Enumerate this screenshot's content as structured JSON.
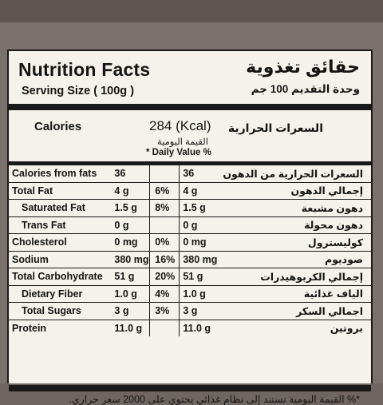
{
  "label": {
    "title_en": "Nutrition Facts",
    "title_ar": "حقائق تغذوية",
    "serving_en": "Serving Size ( 100g )",
    "serving_ar": "وحدة التقديم 100 جم",
    "calories_label_en": "Calories",
    "calories_label_ar": "السعرات الحرارية",
    "calories_value": "284 (Kcal)",
    "daily_value_ar": "القيمة اليومية",
    "daily_value_en": "* Daily Value %",
    "rows": [
      {
        "name_en": "Calories from fats",
        "amount": "36",
        "dv": "",
        "amount_ar": "36",
        "name_ar": "السعرات الحرارية من الدهون"
      },
      {
        "name_en": "Total Fat",
        "amount": "4 g",
        "dv": "6%",
        "amount_ar": "4 g",
        "name_ar": "إجمالي الدهون"
      },
      {
        "name_en": "Saturated Fat",
        "amount": "1.5 g",
        "dv": "8%",
        "amount_ar": "1.5 g",
        "name_ar": "دهون مشبعة"
      },
      {
        "name_en": "Trans Fat",
        "amount": "0 g",
        "dv": "",
        "amount_ar": "0 g",
        "name_ar": "دهون محولة"
      },
      {
        "name_en": "Cholesterol",
        "amount": "0 mg",
        "dv": "0%",
        "amount_ar": "0 mg",
        "name_ar": "كوليسترول"
      },
      {
        "name_en": "Sodium",
        "amount": "380 mg",
        "dv": "16%",
        "amount_ar": "380 mg",
        "name_ar": "صوديوم"
      },
      {
        "name_en": "Total Carbohydrate",
        "amount": "51 g",
        "dv": "20%",
        "amount_ar": "51 g",
        "name_ar": "إجمالي الكربوهيدرات"
      },
      {
        "name_en": "Dietary Fiber",
        "amount": "1.0 g",
        "dv": "4%",
        "amount_ar": "1.0 g",
        "name_ar": "الياف غذائية"
      },
      {
        "name_en": "Total Sugars",
        "amount": "3 g",
        "dv": "3%",
        "amount_ar": "3 g",
        "name_ar": "اجمالي السكر"
      },
      {
        "name_en": "Protein",
        "amount": "11.0 g",
        "dv": "",
        "amount_ar": "11.0 g",
        "name_ar": "بروتين"
      }
    ],
    "footnote_ar": "*% القيمة اليومية تستند إلى نظام غذائي يحتوي على 2000 سعر حراري."
  }
}
